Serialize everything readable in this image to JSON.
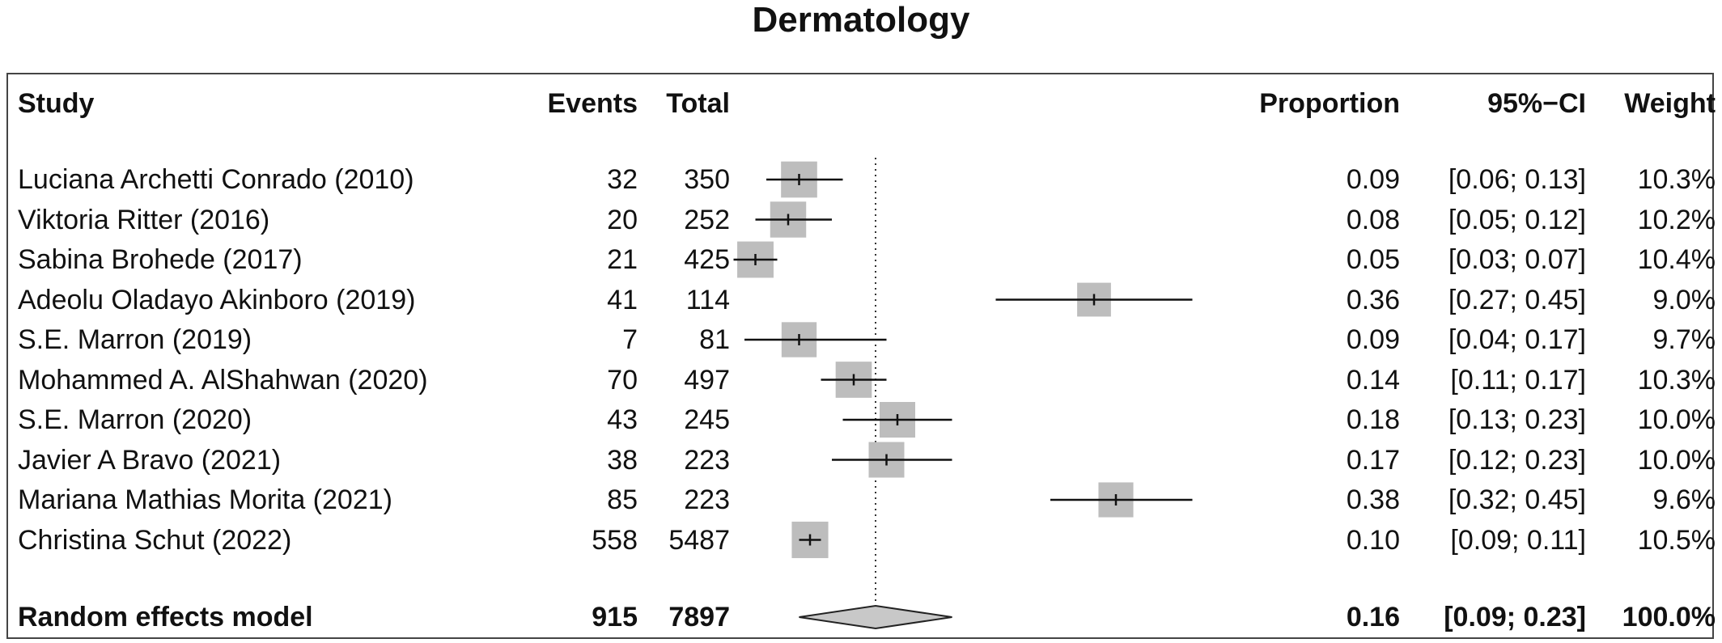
{
  "chart_data": {
    "type": "forest",
    "title": "Dermatology",
    "columns": {
      "study": "Study",
      "events": "Events",
      "total": "Total",
      "proportion": "Proportion",
      "ci": "95%−CI",
      "weight": "Weight"
    },
    "xlim": [
      0,
      0.5
    ],
    "reference_line": 0.16,
    "studies": [
      {
        "study": "Luciana Archetti Conrado (2010)",
        "events": "32",
        "total": "350",
        "proportion": "0.09",
        "ci": "[0.06; 0.13]",
        "weight": "10.3%",
        "est": 0.09,
        "lo": 0.06,
        "hi": 0.13,
        "w": 10.3
      },
      {
        "study": "Viktoria Ritter (2016)",
        "events": "20",
        "total": "252",
        "proportion": "0.08",
        "ci": "[0.05; 0.12]",
        "weight": "10.2%",
        "est": 0.08,
        "lo": 0.05,
        "hi": 0.12,
        "w": 10.2
      },
      {
        "study": "Sabina Brohede (2017)",
        "events": "21",
        "total": "425",
        "proportion": "0.05",
        "ci": "[0.03; 0.07]",
        "weight": "10.4%",
        "est": 0.05,
        "lo": 0.03,
        "hi": 0.07,
        "w": 10.4
      },
      {
        "study": "Adeolu Oladayo Akinboro (2019)",
        "events": "41",
        "total": "114",
        "proportion": "0.36",
        "ci": "[0.27; 0.45]",
        "weight": "9.0%",
        "est": 0.36,
        "lo": 0.27,
        "hi": 0.45,
        "w": 9.0
      },
      {
        "study": "S.E. Marron (2019)",
        "events": "7",
        "total": "81",
        "proportion": "0.09",
        "ci": "[0.04; 0.17]",
        "weight": "9.7%",
        "est": 0.09,
        "lo": 0.04,
        "hi": 0.17,
        "w": 9.7
      },
      {
        "study": "Mohammed A. AlShahwan (2020)",
        "events": "70",
        "total": "497",
        "proportion": "0.14",
        "ci": "[0.11; 0.17]",
        "weight": "10.3%",
        "est": 0.14,
        "lo": 0.11,
        "hi": 0.17,
        "w": 10.3
      },
      {
        "study": "S.E. Marron (2020)",
        "events": "43",
        "total": "245",
        "proportion": "0.18",
        "ci": "[0.13; 0.23]",
        "weight": "10.0%",
        "est": 0.18,
        "lo": 0.13,
        "hi": 0.23,
        "w": 10.0
      },
      {
        "study": "Javier A Bravo (2021)",
        "events": "38",
        "total": "223",
        "proportion": "0.17",
        "ci": "[0.12; 0.23]",
        "weight": "10.0%",
        "est": 0.17,
        "lo": 0.12,
        "hi": 0.23,
        "w": 10.0
      },
      {
        "study": "Mariana Mathias Morita (2021)",
        "events": "85",
        "total": "223",
        "proportion": "0.38",
        "ci": "[0.32; 0.45]",
        "weight": "9.6%",
        "est": 0.38,
        "lo": 0.32,
        "hi": 0.45,
        "w": 9.6
      },
      {
        "study": "Christina Schut (2022)",
        "events": "558",
        "total": "5487",
        "proportion": "0.10",
        "ci": "[0.09; 0.11]",
        "weight": "10.5%",
        "est": 0.1,
        "lo": 0.09,
        "hi": 0.11,
        "w": 10.5
      }
    ],
    "pooled": {
      "study": "Random effects model",
      "events": "915",
      "total": "7897",
      "proportion": "0.16",
      "ci": "[0.09; 0.23]",
      "weight": "100.0%",
      "est": 0.16,
      "lo": 0.09,
      "hi": 0.23
    },
    "colors": {
      "box": "#bdbdbd",
      "line": "#111111",
      "diamond": "#c8c8c8"
    }
  }
}
